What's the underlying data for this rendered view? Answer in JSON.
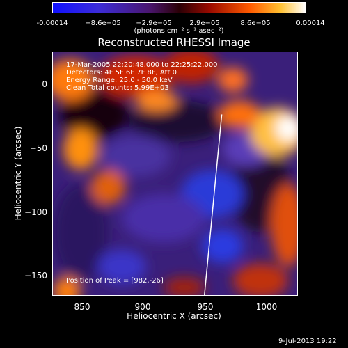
{
  "colorbar": {
    "ticks": [
      "-0.00014",
      "−8.6e−05",
      "−2.9e−05",
      "2.9e−05",
      "8.6e−05",
      "0.00014"
    ],
    "unit": "(photons cm⁻² s⁻¹ asec⁻²)"
  },
  "title": "Reconstructed RHESSI Image",
  "info": {
    "line1": "17-Mar-2005 22:20:48.000 to 22:25:22.000",
    "line2": "Detectors: 4F 5F 6F 7F 8F, Att 0",
    "line3": "Energy Range: 25.0 - 50.0 keV",
    "line4": "Clean    Total counts: 5.99E+03",
    "peak": "Position of Peak = [982,-26]"
  },
  "axes": {
    "xlabel": "Heliocentric X (arcsec)",
    "ylabel": "Heliocentric Y (arcsec)",
    "xticks": [
      "850",
      "900",
      "950",
      "1000"
    ],
    "yticks": [
      "0",
      "−50",
      "−100",
      "−150"
    ]
  },
  "footer": "9-Jul-2013 19:22"
}
